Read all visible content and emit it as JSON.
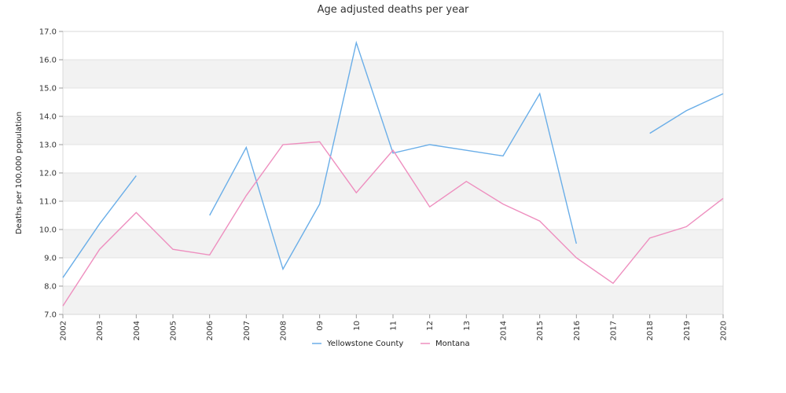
{
  "chart_data": {
    "type": "line",
    "title": "Age adjusted deaths per year",
    "xlabel": "",
    "ylabel": "Deaths per 100,000 population",
    "x": [
      "2002",
      "2003",
      "2004",
      "2005",
      "2006",
      "2007",
      "2008",
      "09",
      "10",
      "11",
      "12",
      "13",
      "2014",
      "2015",
      "2016",
      "2017",
      "2018",
      "2019",
      "2020"
    ],
    "ylim": [
      7.0,
      17.0
    ],
    "yticks": [
      "7.0",
      "8.0",
      "9.0",
      "10.0",
      "11.0",
      "12.0",
      "13.0",
      "14.0",
      "15.0",
      "16.0",
      "17.0"
    ],
    "grid": "alternating horizontal bands",
    "legend_position": "bottom",
    "series": [
      {
        "name": "Yellowstone County",
        "color": "#6aaee8",
        "values": [
          8.3,
          10.2,
          11.9,
          null,
          10.5,
          12.9,
          8.6,
          10.9,
          16.6,
          12.7,
          13.0,
          12.8,
          12.6,
          14.8,
          9.5,
          null,
          13.4,
          14.2,
          14.8
        ]
      },
      {
        "name": "Montana",
        "color": "#ee8fbf",
        "values": [
          7.3,
          9.3,
          10.6,
          9.3,
          9.1,
          11.2,
          13.0,
          13.1,
          11.3,
          12.8,
          10.8,
          11.7,
          10.9,
          10.3,
          9.0,
          8.1,
          9.7,
          10.1,
          11.1
        ]
      }
    ]
  }
}
